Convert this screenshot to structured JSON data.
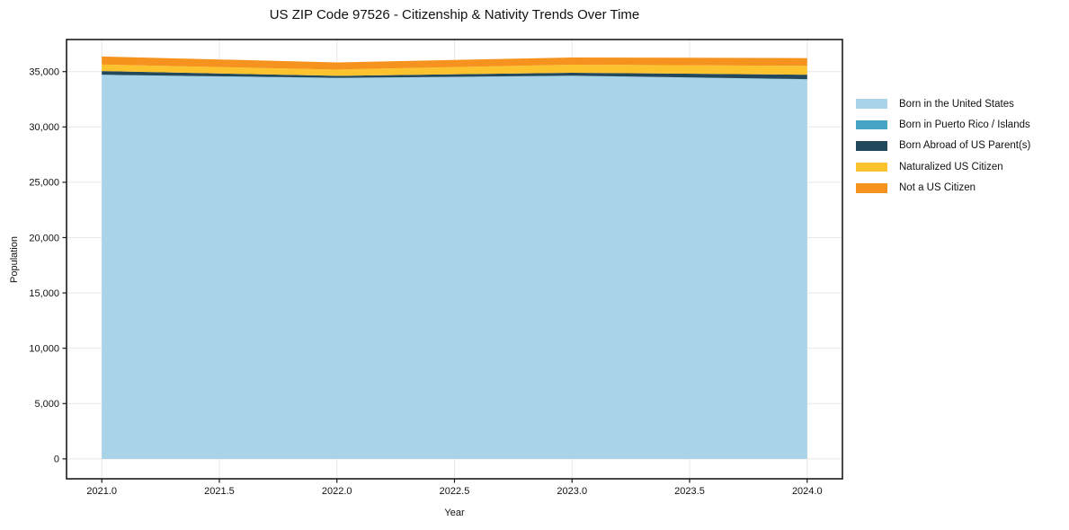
{
  "page": {
    "title": "US ZIP Code 97526 - Citizenship & Nativity Trends Over Time"
  },
  "chart_data": {
    "type": "area",
    "stacked": true,
    "title": "US ZIP Code 97526 - Citizenship & Nativity Trends Over Time",
    "xlabel": "Year",
    "ylabel": "Population",
    "x": [
      2021,
      2022,
      2023,
      2024
    ],
    "series": [
      {
        "name": "Born in the United States",
        "color": "#a8d3e8",
        "values": [
          34700,
          34420,
          34620,
          34300
        ]
      },
      {
        "name": "Born in Puerto Rico / Islands",
        "color": "#45a5c2",
        "values": [
          20,
          15,
          10,
          20
        ]
      },
      {
        "name": "Born Abroad of US Parent(s)",
        "color": "#23475b",
        "values": [
          330,
          185,
          270,
          400
        ]
      },
      {
        "name": "Naturalized US Citizen",
        "color": "#fdc32f",
        "values": [
          590,
          565,
          730,
          800
        ]
      },
      {
        "name": "Not a US Citizen",
        "color": "#f6931e",
        "values": [
          730,
          645,
          650,
          700
        ]
      }
    ],
    "totals": [
      36370,
      35830,
      36280,
      36220
    ],
    "xlim": [
      2020.85,
      2024.15
    ],
    "ylim": [
      -1800,
      37900
    ],
    "xticks": [
      2021.0,
      2021.5,
      2022.0,
      2022.5,
      2023.0,
      2023.5,
      2024.0
    ],
    "xtick_labels": [
      "2021.0",
      "2021.5",
      "2022.0",
      "2022.5",
      "2023.0",
      "2023.5",
      "2024.0"
    ],
    "yticks": [
      0,
      5000,
      10000,
      15000,
      20000,
      25000,
      30000,
      35000
    ],
    "ytick_labels": [
      "0",
      "5,000",
      "10,000",
      "15,000",
      "20,000",
      "25,000",
      "30,000",
      "35,000"
    ],
    "grid": true,
    "grid_color": "#e7e7e7",
    "spine_color": "#1a1a1a",
    "tick_color": "#1a1a1a",
    "text_color": "#111111",
    "background_color": "#ffffff",
    "legend_position": "right-outside"
  }
}
